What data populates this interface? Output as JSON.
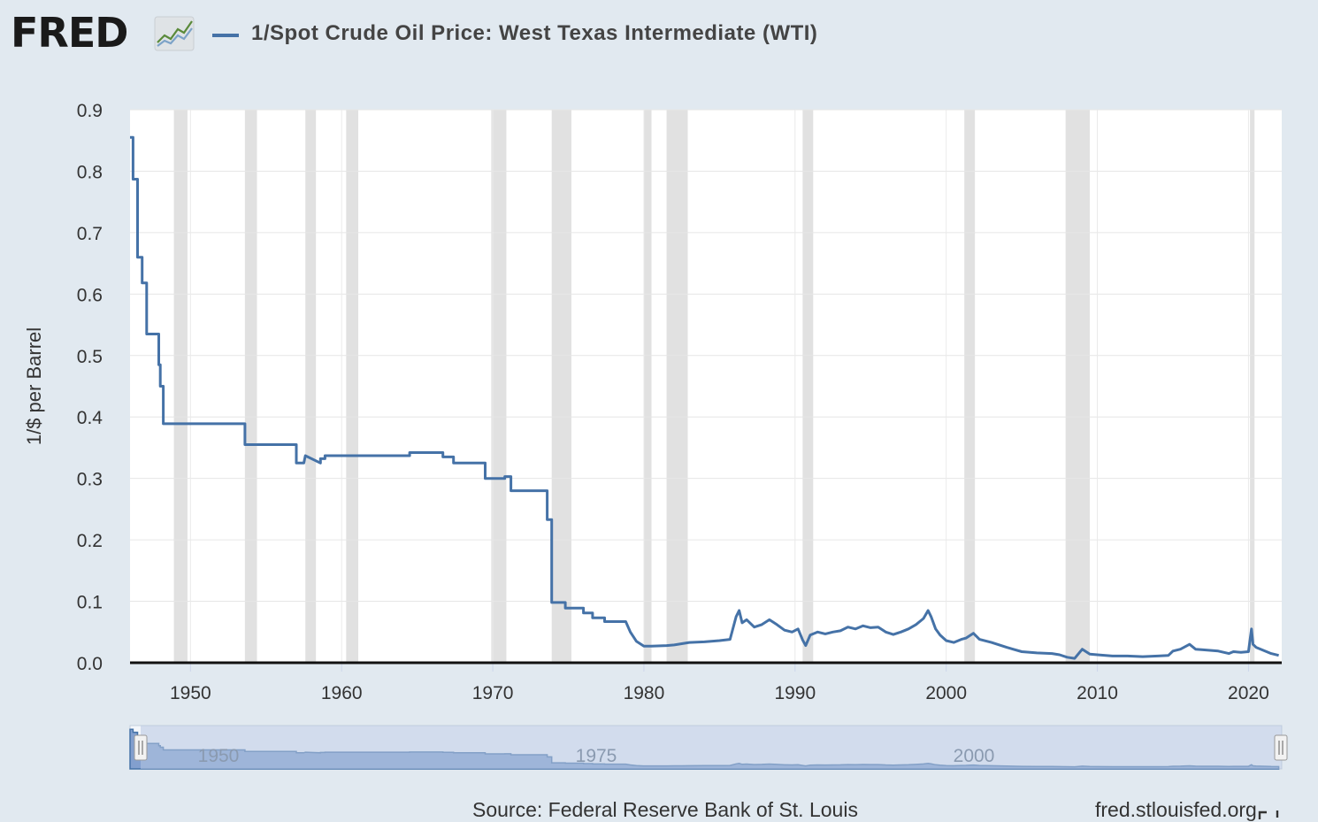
{
  "header": {
    "logo_text": "FRED",
    "series_title": "1/Spot Crude Oil Price: West Texas Intermediate (WTI)"
  },
  "footer": {
    "source": "Source: Federal Reserve Bank of St. Louis",
    "link": "fred.stlouisfed.org"
  },
  "colors": {
    "background": "#e1e9f0",
    "plot": "#ffffff",
    "series": "#4572a7",
    "recession": "#e1e1e1",
    "navigator_mask": "#b6c6e2",
    "navigator_area": "#6d8fc6"
  },
  "navigator": {
    "labels": [
      "1950",
      "1975",
      "2000"
    ]
  },
  "chart_data": {
    "type": "line",
    "title": "1/Spot Crude Oil Price: West Texas Intermediate (WTI)",
    "xlabel": "",
    "ylabel": "1/$ per Barrel",
    "xlim": [
      1946.0,
      2022.2
    ],
    "ylim": [
      0,
      0.9
    ],
    "yticks": [
      0.0,
      0.1,
      0.2,
      0.3,
      0.4,
      0.5,
      0.6,
      0.7,
      0.8,
      0.9
    ],
    "xticks": [
      1950,
      1960,
      1970,
      1980,
      1990,
      2000,
      2010,
      2020
    ],
    "grid": true,
    "legend": "top-left",
    "recessions": [
      [
        1948.9,
        1949.8
      ],
      [
        1953.6,
        1954.4
      ],
      [
        1957.6,
        1958.3
      ],
      [
        1960.3,
        1961.1
      ],
      [
        1969.9,
        1970.9
      ],
      [
        1973.9,
        1975.2
      ],
      [
        1980.0,
        1980.5
      ],
      [
        1981.5,
        1982.9
      ],
      [
        1990.5,
        1991.2
      ],
      [
        2001.2,
        2001.9
      ],
      [
        2007.9,
        2009.5
      ],
      [
        2020.1,
        2020.4
      ]
    ],
    "series": [
      {
        "name": "1/Spot Crude Oil Price: West Texas Intermediate (WTI)",
        "x": [
          1946.0,
          1946.2,
          1946.2,
          1946.5,
          1946.5,
          1946.8,
          1946.8,
          1947.1,
          1947.1,
          1947.4,
          1947.4,
          1947.9,
          1947.9,
          1948.0,
          1948.0,
          1948.2,
          1948.2,
          1953.6,
          1953.6,
          1957.0,
          1957.0,
          1957.5,
          1957.6,
          1958.6,
          1958.6,
          1958.9,
          1958.9,
          1964.5,
          1964.5,
          1966.7,
          1966.7,
          1967.4,
          1967.4,
          1969.5,
          1969.5,
          1970.8,
          1970.8,
          1971.2,
          1971.2,
          1973.6,
          1973.6,
          1973.9,
          1973.9,
          1974.1,
          1974.1,
          1974.8,
          1974.8,
          1976.0,
          1976.0,
          1976.6,
          1976.6,
          1977.4,
          1977.4,
          1978.8,
          1979.1,
          1979.5,
          1980.0,
          1980.5,
          1981.5,
          1982.0,
          1982.5,
          1983.0,
          1984.0,
          1985.0,
          1985.7,
          1986.1,
          1986.3,
          1986.5,
          1986.8,
          1987.3,
          1987.8,
          1988.3,
          1988.8,
          1989.3,
          1989.8,
          1990.2,
          1990.5,
          1990.7,
          1991.0,
          1991.5,
          1992.0,
          1992.5,
          1993.0,
          1993.5,
          1994.0,
          1994.5,
          1995.0,
          1995.5,
          1996.0,
          1996.5,
          1997.0,
          1997.5,
          1998.0,
          1998.5,
          1998.8,
          1999.0,
          1999.3,
          1999.6,
          2000.0,
          2000.5,
          2001.0,
          2001.3,
          2001.8,
          2002.2,
          2003.0,
          2004.0,
          2005.0,
          2006.0,
          2007.0,
          2007.5,
          2008.0,
          2008.5,
          2009.0,
          2009.5,
          2010.0,
          2011.0,
          2012.0,
          2013.0,
          2014.0,
          2014.7,
          2015.0,
          2015.5,
          2016.1,
          2016.5,
          2017.0,
          2018.0,
          2018.7,
          2019.0,
          2019.5,
          2020.0,
          2020.2,
          2020.3,
          2020.5,
          2021.0,
          2021.5,
          2022.0
        ],
        "values": [
          0.855,
          0.855,
          0.787,
          0.787,
          0.66,
          0.66,
          0.618,
          0.618,
          0.535,
          0.535,
          0.535,
          0.535,
          0.485,
          0.485,
          0.45,
          0.45,
          0.389,
          0.389,
          0.355,
          0.355,
          0.325,
          0.325,
          0.337,
          0.325,
          0.332,
          0.332,
          0.337,
          0.337,
          0.342,
          0.342,
          0.335,
          0.335,
          0.325,
          0.325,
          0.3,
          0.3,
          0.303,
          0.303,
          0.28,
          0.28,
          0.233,
          0.233,
          0.098,
          0.098,
          0.098,
          0.098,
          0.089,
          0.089,
          0.081,
          0.081,
          0.073,
          0.073,
          0.067,
          0.067,
          0.05,
          0.035,
          0.027,
          0.027,
          0.028,
          0.029,
          0.031,
          0.033,
          0.034,
          0.036,
          0.038,
          0.075,
          0.085,
          0.065,
          0.07,
          0.058,
          0.062,
          0.07,
          0.062,
          0.053,
          0.05,
          0.055,
          0.037,
          0.028,
          0.045,
          0.05,
          0.047,
          0.05,
          0.052,
          0.058,
          0.055,
          0.06,
          0.057,
          0.058,
          0.05,
          0.046,
          0.05,
          0.055,
          0.062,
          0.072,
          0.085,
          0.075,
          0.055,
          0.045,
          0.036,
          0.033,
          0.038,
          0.04,
          0.048,
          0.038,
          0.033,
          0.025,
          0.018,
          0.016,
          0.015,
          0.013,
          0.009,
          0.007,
          0.022,
          0.014,
          0.013,
          0.011,
          0.011,
          0.01,
          0.011,
          0.012,
          0.019,
          0.022,
          0.03,
          0.022,
          0.021,
          0.019,
          0.015,
          0.018,
          0.017,
          0.018,
          0.055,
          0.03,
          0.025,
          0.02,
          0.015,
          0.012
        ]
      }
    ]
  }
}
